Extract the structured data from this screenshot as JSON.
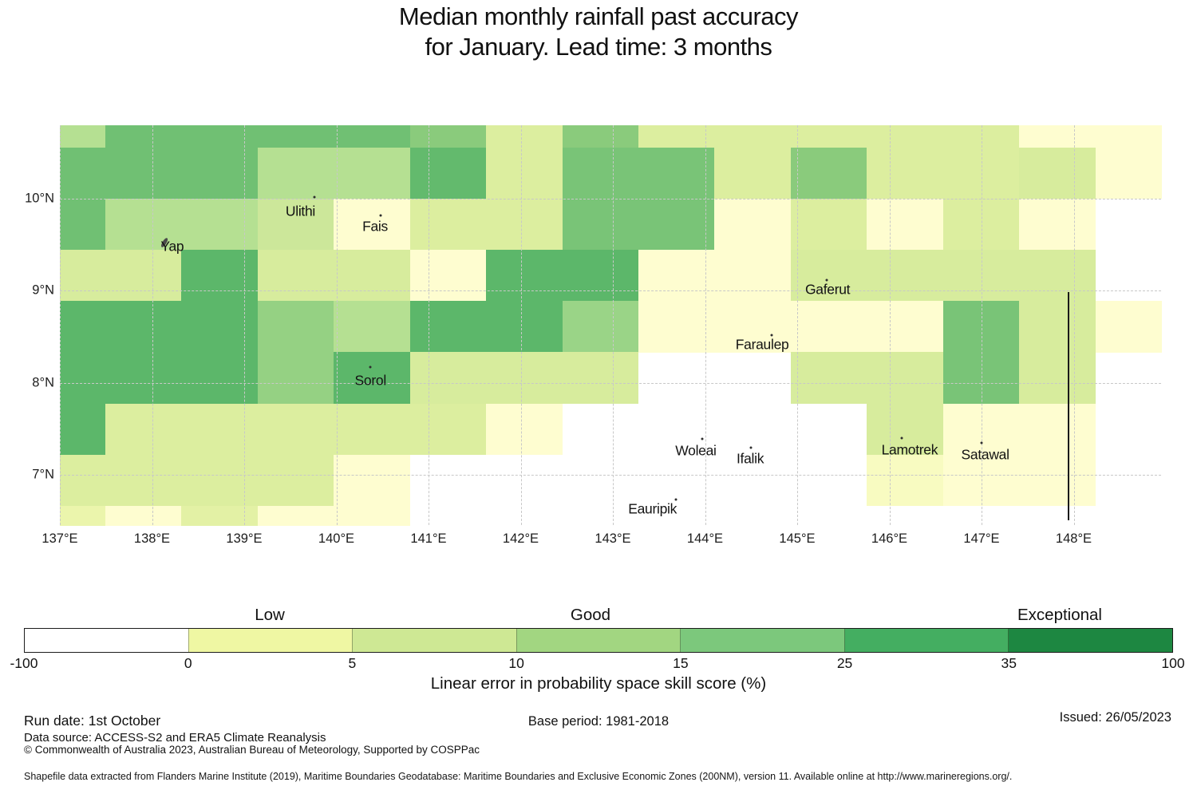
{
  "title": {
    "line1": "Median monthly rainfall past accuracy",
    "line2": "for January. Lead time: 3 months"
  },
  "chart_data": {
    "type": "heatmap",
    "title": "Median monthly rainfall past accuracy for January. Lead time: 3 months",
    "value_label": "Linear error in probability space skill score (%)",
    "x_axis": {
      "tick_values": [
        137,
        138,
        139,
        140,
        141,
        142,
        143,
        144,
        145,
        146,
        147,
        148
      ],
      "tick_labels": [
        "137°E",
        "138°E",
        "139°E",
        "140°E",
        "141°E",
        "142°E",
        "143°E",
        "144°E",
        "145°E",
        "146°E",
        "147°E",
        "148°E"
      ],
      "range": [
        137.0,
        148.95
      ]
    },
    "y_axis": {
      "tick_values": [
        7,
        8,
        9,
        10
      ],
      "tick_labels": [
        "7°N",
        "8°N",
        "9°N",
        "10°N"
      ],
      "range": [
        6.455,
        10.797
      ]
    },
    "grid": {
      "lon_edges": [
        137.0,
        137.493,
        138.319,
        139.146,
        139.972,
        140.798,
        141.624,
        142.451,
        143.277,
        144.103,
        144.93,
        145.756,
        146.582,
        147.408,
        148.235,
        148.95
      ],
      "lat_edges": [
        10.797,
        10.556,
        10.0,
        9.444,
        8.889,
        8.333,
        7.778,
        7.222,
        6.667,
        6.455
      ],
      "skill_values": [
        [
          12,
          22,
          22,
          22,
          22,
          18,
          7,
          18,
          7,
          7,
          7,
          7,
          7,
          2,
          2
        ],
        [
          22,
          22,
          22,
          12,
          12,
          25,
          7,
          20,
          20,
          7,
          18,
          7,
          7,
          8,
          2
        ],
        [
          22,
          12,
          12,
          10,
          2,
          7,
          7,
          20,
          20,
          2,
          7,
          2,
          7,
          2,
          null
        ],
        [
          8,
          8,
          26,
          8,
          8,
          2,
          26,
          26,
          2,
          2,
          8,
          8,
          8,
          8,
          null
        ],
        [
          26,
          26,
          26,
          16,
          12,
          26,
          26,
          15,
          2,
          2,
          2,
          2,
          20,
          8,
          2
        ],
        [
          26,
          26,
          26,
          16,
          26,
          8,
          8,
          8,
          null,
          null,
          8,
          8,
          20,
          8,
          null
        ],
        [
          26,
          7,
          7,
          7,
          7,
          7,
          2,
          null,
          null,
          null,
          null,
          8,
          2,
          2,
          null
        ],
        [
          7,
          7,
          7,
          7,
          2,
          null,
          null,
          null,
          null,
          null,
          null,
          3,
          2,
          2,
          null
        ],
        [
          5,
          2,
          6,
          2,
          2,
          null,
          null,
          null,
          null,
          null,
          null,
          null,
          null,
          null,
          null
        ]
      ]
    },
    "colormap_anchors": [
      [
        0,
        "#ffffd8"
      ],
      [
        2,
        "#fefdd0"
      ],
      [
        4,
        "#f2f8b2"
      ],
      [
        7,
        "#dcee9f"
      ],
      [
        10,
        "#cce79a"
      ],
      [
        12,
        "#b5e092"
      ],
      [
        15,
        "#9ad487"
      ],
      [
        18,
        "#8acb7c"
      ],
      [
        20,
        "#79c477"
      ],
      [
        25,
        "#63ba6d"
      ],
      [
        26,
        "#5cb76a"
      ],
      [
        35,
        "#2f9e53"
      ],
      [
        50,
        "#1d8741"
      ]
    ],
    "missing_color": "#ffffff",
    "islands": [
      {
        "name": "Yap",
        "lon": 138.22,
        "lat": 9.481,
        "dot_lon": 138.13,
        "dot_lat": 9.52,
        "marker": "yap-shape"
      },
      {
        "name": "Ulithi",
        "lon": 139.61,
        "lat": 9.861,
        "dot_lon": 139.76,
        "dot_lat": 10.017,
        "marker": "dot"
      },
      {
        "name": "Fais",
        "lon": 140.42,
        "lat": 9.697,
        "dot_lon": 140.48,
        "dot_lat": 9.818,
        "marker": "dot"
      },
      {
        "name": "Sorol",
        "lon": 140.37,
        "lat": 8.026,
        "dot_lon": 140.37,
        "dot_lat": 8.173,
        "marker": "dot"
      },
      {
        "name": "Gaferut",
        "lon": 145.33,
        "lat": 9.013,
        "dot_lon": 145.32,
        "dot_lat": 9.117,
        "marker": "dot"
      },
      {
        "name": "Faraulep",
        "lon": 144.62,
        "lat": 8.415,
        "dot_lon": 144.72,
        "dot_lat": 8.519,
        "marker": "dot"
      },
      {
        "name": "Woleai",
        "lon": 143.9,
        "lat": 7.263,
        "dot_lon": 143.97,
        "dot_lat": 7.393,
        "marker": "dot"
      },
      {
        "name": "Ifalik",
        "lon": 144.49,
        "lat": 7.176,
        "dot_lon": 144.5,
        "dot_lat": 7.297,
        "marker": "dot"
      },
      {
        "name": "Eauripik",
        "lon": 143.43,
        "lat": 6.631,
        "dot_lon": 143.68,
        "dot_lat": 6.733,
        "marker": "dot"
      },
      {
        "name": "Lamotrek",
        "lon": 146.22,
        "lat": 7.272,
        "dot_lon": 146.13,
        "dot_lat": 7.402,
        "marker": "dot"
      },
      {
        "name": "Satawal",
        "lon": 147.04,
        "lat": 7.22,
        "dot_lon": 147.0,
        "dot_lat": 7.35,
        "marker": "dot"
      }
    ],
    "eez_line": {
      "lon": 147.944,
      "lat_top": 8.99,
      "lat_bottom": 6.51,
      "color": "#1a1a1a"
    },
    "grid_on": true
  },
  "colorbar": {
    "segments": [
      {
        "range": "-100 to 0",
        "color": "#ffffff"
      },
      {
        "range": "0 to 5",
        "color": "#eff7a3"
      },
      {
        "range": "5 to 10",
        "color": "#cee894"
      },
      {
        "range": "10 to 15",
        "color": "#a2d681"
      },
      {
        "range": "15 to 25",
        "color": "#7cc87c"
      },
      {
        "range": "25 to 35",
        "color": "#44ae61"
      },
      {
        "range": "35 to 100",
        "color": "#1d8741"
      }
    ],
    "tick_labels": [
      "-100",
      "0",
      "5",
      "10",
      "15",
      "25",
      "35",
      "100"
    ],
    "band_labels": [
      {
        "text": "Low"
      },
      {
        "text": "Good"
      },
      {
        "text": "Exceptional"
      }
    ],
    "axis_label": "Linear error in probability space skill score (%)"
  },
  "footer": {
    "run_date": "Run date: 1st October",
    "data_source": "Data source: ACCESS-S2 and ERA5 Climate Reanalysis",
    "copyright": "© Commonwealth of Australia 2023, Australian Bureau of Meteorology, Supported by COSPPac",
    "base_period": "Base period: 1981-2018",
    "issued": "Issued: 26/05/2023",
    "shapefile": "Shapefile data extracted from Flanders Marine Institute (2019), Maritime Boundaries Geodatabase: Maritime Boundaries and Exclusive Economic Zones (200NM), version 11. Available online at http://www.marineregions.org/."
  }
}
